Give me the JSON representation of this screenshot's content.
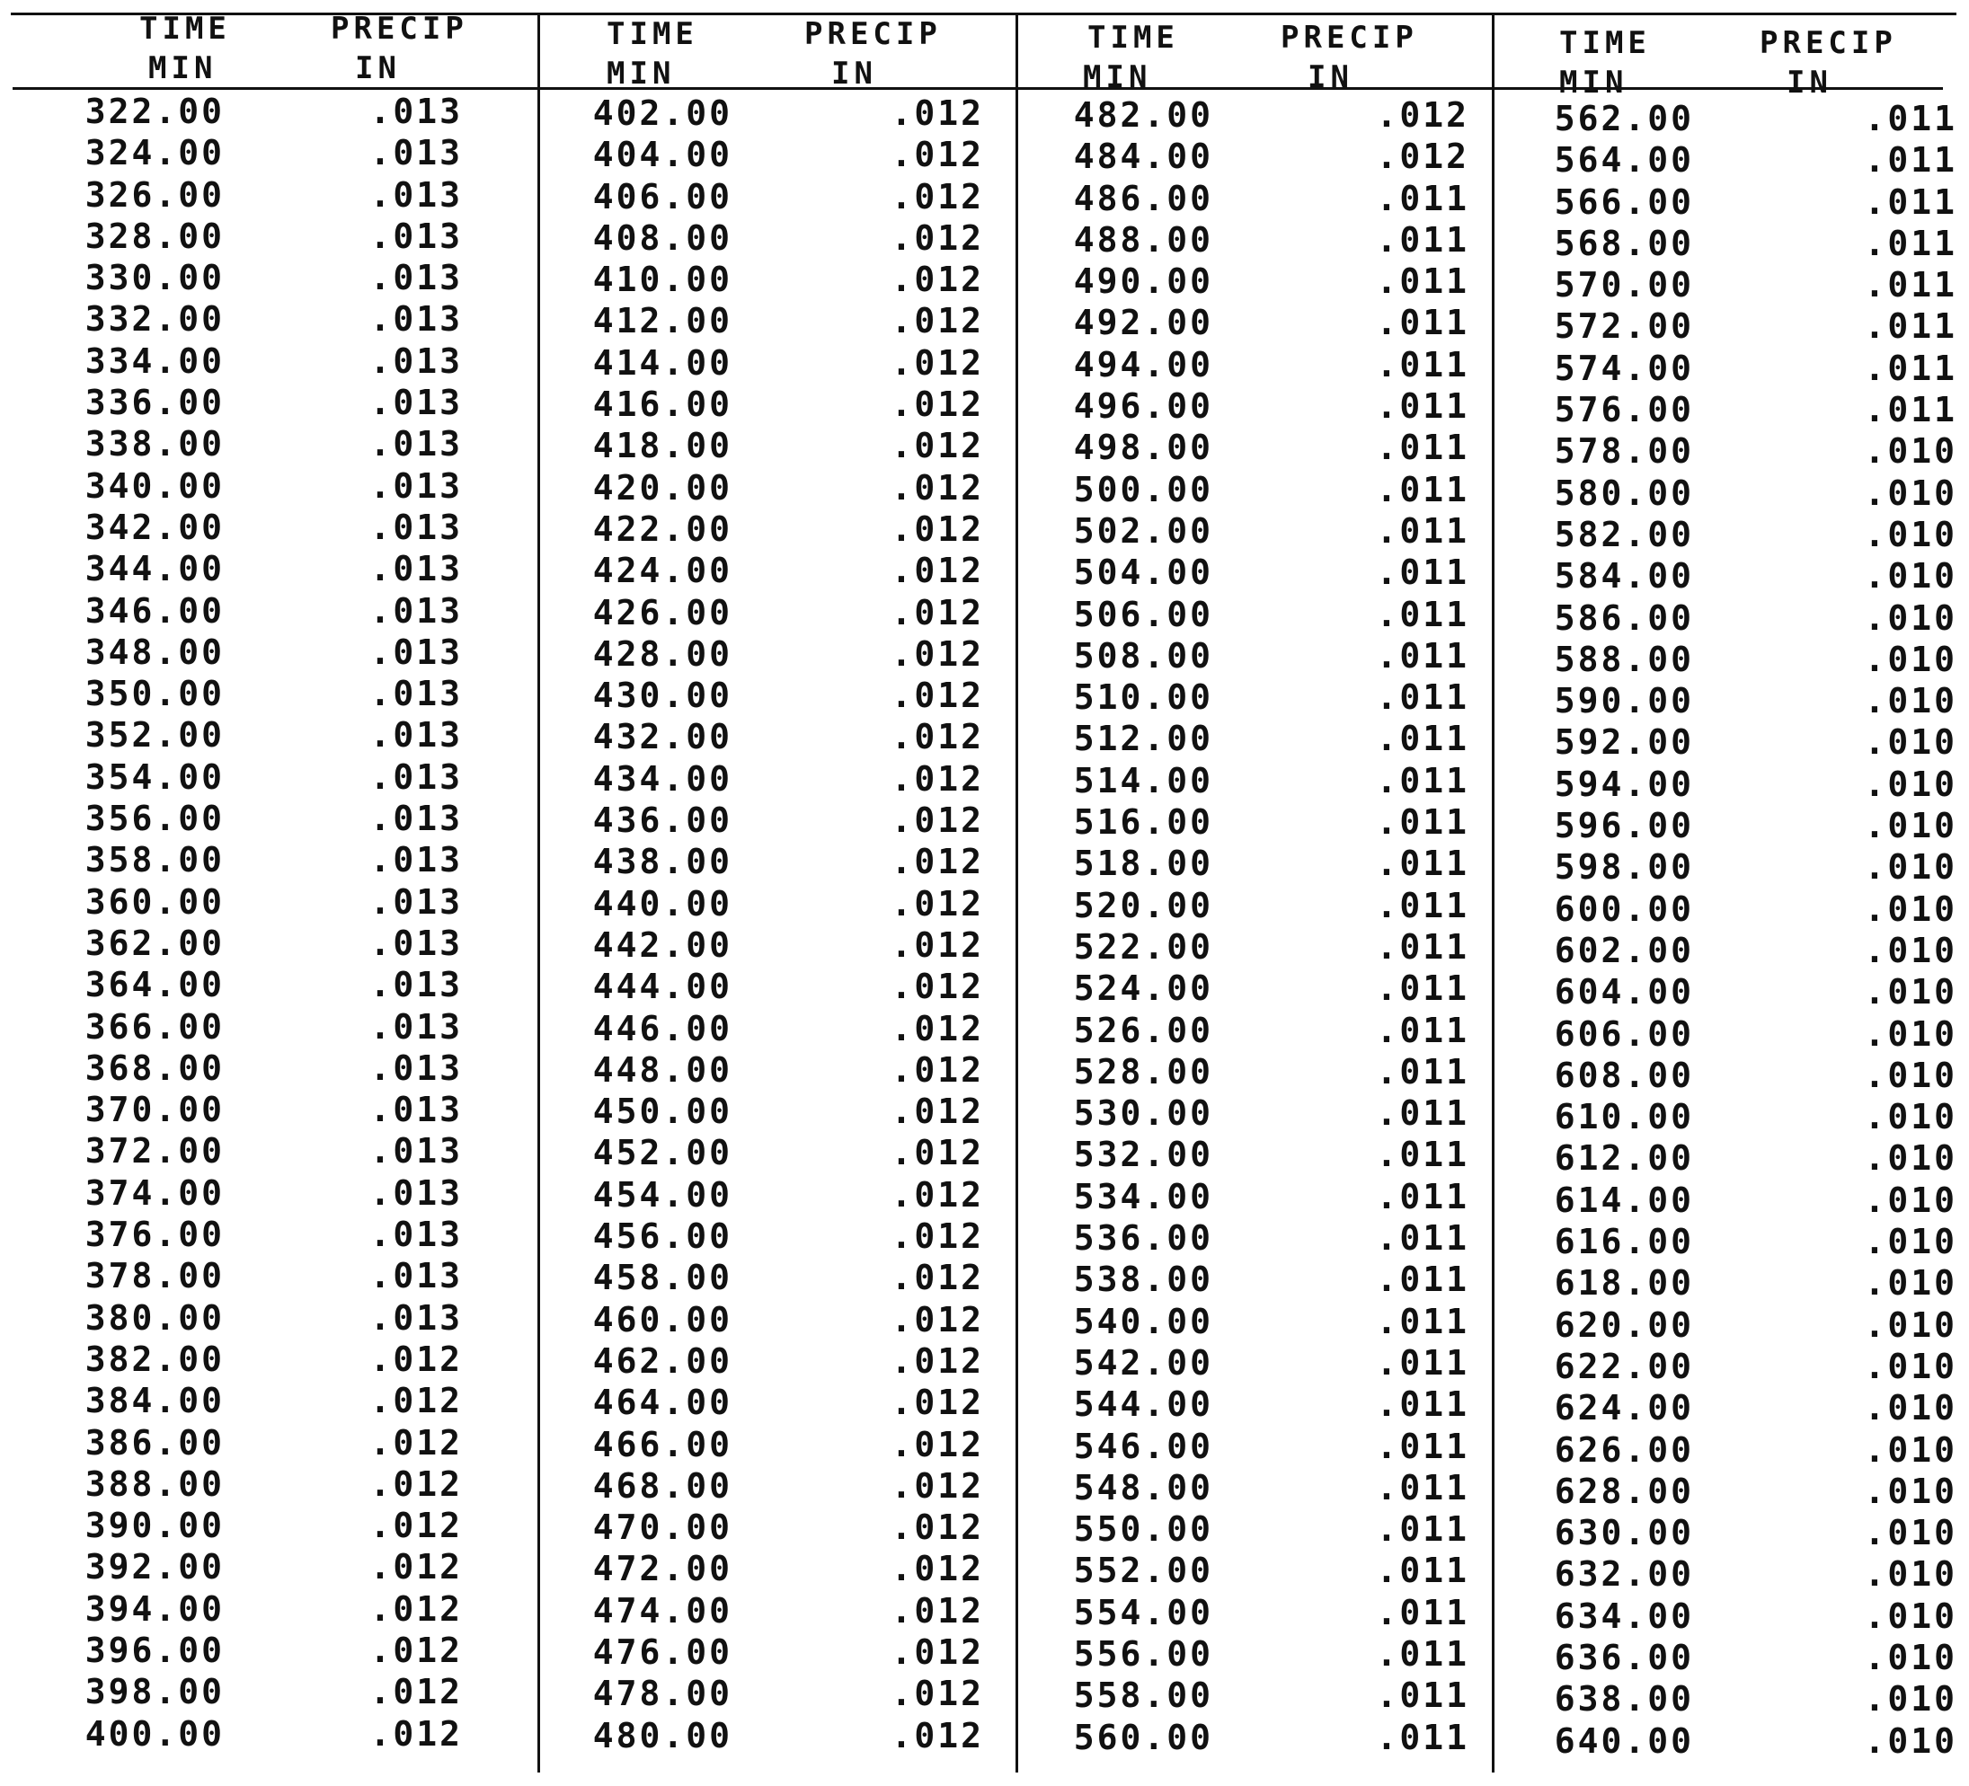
{
  "table": {
    "header": {
      "time_line1": "TIME",
      "time_line2": "MIN",
      "precip_line1": "PRECIP",
      "precip_line2": "IN"
    },
    "columns": [
      {
        "rows": [
          {
            "time": "322.00",
            "precip": ".013"
          },
          {
            "time": "324.00",
            "precip": ".013"
          },
          {
            "time": "326.00",
            "precip": ".013"
          },
          {
            "time": "328.00",
            "precip": ".013"
          },
          {
            "time": "330.00",
            "precip": ".013"
          },
          {
            "time": "332.00",
            "precip": ".013"
          },
          {
            "time": "334.00",
            "precip": ".013"
          },
          {
            "time": "336.00",
            "precip": ".013"
          },
          {
            "time": "338.00",
            "precip": ".013"
          },
          {
            "time": "340.00",
            "precip": ".013"
          },
          {
            "time": "342.00",
            "precip": ".013"
          },
          {
            "time": "344.00",
            "precip": ".013"
          },
          {
            "time": "346.00",
            "precip": ".013"
          },
          {
            "time": "348.00",
            "precip": ".013"
          },
          {
            "time": "350.00",
            "precip": ".013"
          },
          {
            "time": "352.00",
            "precip": ".013"
          },
          {
            "time": "354.00",
            "precip": ".013"
          },
          {
            "time": "356.00",
            "precip": ".013"
          },
          {
            "time": "358.00",
            "precip": ".013"
          },
          {
            "time": "360.00",
            "precip": ".013"
          },
          {
            "time": "362.00",
            "precip": ".013"
          },
          {
            "time": "364.00",
            "precip": ".013"
          },
          {
            "time": "366.00",
            "precip": ".013"
          },
          {
            "time": "368.00",
            "precip": ".013"
          },
          {
            "time": "370.00",
            "precip": ".013"
          },
          {
            "time": "372.00",
            "precip": ".013"
          },
          {
            "time": "374.00",
            "precip": ".013"
          },
          {
            "time": "376.00",
            "precip": ".013"
          },
          {
            "time": "378.00",
            "precip": ".013"
          },
          {
            "time": "380.00",
            "precip": ".013"
          },
          {
            "time": "382.00",
            "precip": ".012"
          },
          {
            "time": "384.00",
            "precip": ".012"
          },
          {
            "time": "386.00",
            "precip": ".012"
          },
          {
            "time": "388.00",
            "precip": ".012"
          },
          {
            "time": "390.00",
            "precip": ".012"
          },
          {
            "time": "392.00",
            "precip": ".012"
          },
          {
            "time": "394.00",
            "precip": ".012"
          },
          {
            "time": "396.00",
            "precip": ".012"
          },
          {
            "time": "398.00",
            "precip": ".012"
          },
          {
            "time": "400.00",
            "precip": ".012"
          }
        ]
      },
      {
        "rows": [
          {
            "time": "402.00",
            "precip": ".012"
          },
          {
            "time": "404.00",
            "precip": ".012"
          },
          {
            "time": "406.00",
            "precip": ".012"
          },
          {
            "time": "408.00",
            "precip": ".012"
          },
          {
            "time": "410.00",
            "precip": ".012"
          },
          {
            "time": "412.00",
            "precip": ".012"
          },
          {
            "time": "414.00",
            "precip": ".012"
          },
          {
            "time": "416.00",
            "precip": ".012"
          },
          {
            "time": "418.00",
            "precip": ".012"
          },
          {
            "time": "420.00",
            "precip": ".012"
          },
          {
            "time": "422.00",
            "precip": ".012"
          },
          {
            "time": "424.00",
            "precip": ".012"
          },
          {
            "time": "426.00",
            "precip": ".012"
          },
          {
            "time": "428.00",
            "precip": ".012"
          },
          {
            "time": "430.00",
            "precip": ".012"
          },
          {
            "time": "432.00",
            "precip": ".012"
          },
          {
            "time": "434.00",
            "precip": ".012"
          },
          {
            "time": "436.00",
            "precip": ".012"
          },
          {
            "time": "438.00",
            "precip": ".012"
          },
          {
            "time": "440.00",
            "precip": ".012"
          },
          {
            "time": "442.00",
            "precip": ".012"
          },
          {
            "time": "444.00",
            "precip": ".012"
          },
          {
            "time": "446.00",
            "precip": ".012"
          },
          {
            "time": "448.00",
            "precip": ".012"
          },
          {
            "time": "450.00",
            "precip": ".012"
          },
          {
            "time": "452.00",
            "precip": ".012"
          },
          {
            "time": "454.00",
            "precip": ".012"
          },
          {
            "time": "456.00",
            "precip": ".012"
          },
          {
            "time": "458.00",
            "precip": ".012"
          },
          {
            "time": "460.00",
            "precip": ".012"
          },
          {
            "time": "462.00",
            "precip": ".012"
          },
          {
            "time": "464.00",
            "precip": ".012"
          },
          {
            "time": "466.00",
            "precip": ".012"
          },
          {
            "time": "468.00",
            "precip": ".012"
          },
          {
            "time": "470.00",
            "precip": ".012"
          },
          {
            "time": "472.00",
            "precip": ".012"
          },
          {
            "time": "474.00",
            "precip": ".012"
          },
          {
            "time": "476.00",
            "precip": ".012"
          },
          {
            "time": "478.00",
            "precip": ".012"
          },
          {
            "time": "480.00",
            "precip": ".012"
          }
        ]
      },
      {
        "rows": [
          {
            "time": "482.00",
            "precip": ".012"
          },
          {
            "time": "484.00",
            "precip": ".012"
          },
          {
            "time": "486.00",
            "precip": ".011"
          },
          {
            "time": "488.00",
            "precip": ".011"
          },
          {
            "time": "490.00",
            "precip": ".011"
          },
          {
            "time": "492.00",
            "precip": ".011"
          },
          {
            "time": "494.00",
            "precip": ".011"
          },
          {
            "time": "496.00",
            "precip": ".011"
          },
          {
            "time": "498.00",
            "precip": ".011"
          },
          {
            "time": "500.00",
            "precip": ".011"
          },
          {
            "time": "502.00",
            "precip": ".011"
          },
          {
            "time": "504.00",
            "precip": ".011"
          },
          {
            "time": "506.00",
            "precip": ".011"
          },
          {
            "time": "508.00",
            "precip": ".011"
          },
          {
            "time": "510.00",
            "precip": ".011"
          },
          {
            "time": "512.00",
            "precip": ".011"
          },
          {
            "time": "514.00",
            "precip": ".011"
          },
          {
            "time": "516.00",
            "precip": ".011"
          },
          {
            "time": "518.00",
            "precip": ".011"
          },
          {
            "time": "520.00",
            "precip": ".011"
          },
          {
            "time": "522.00",
            "precip": ".011"
          },
          {
            "time": "524.00",
            "precip": ".011"
          },
          {
            "time": "526.00",
            "precip": ".011"
          },
          {
            "time": "528.00",
            "precip": ".011"
          },
          {
            "time": "530.00",
            "precip": ".011"
          },
          {
            "time": "532.00",
            "precip": ".011"
          },
          {
            "time": "534.00",
            "precip": ".011"
          },
          {
            "time": "536.00",
            "precip": ".011"
          },
          {
            "time": "538.00",
            "precip": ".011"
          },
          {
            "time": "540.00",
            "precip": ".011"
          },
          {
            "time": "542.00",
            "precip": ".011"
          },
          {
            "time": "544.00",
            "precip": ".011"
          },
          {
            "time": "546.00",
            "precip": ".011"
          },
          {
            "time": "548.00",
            "precip": ".011"
          },
          {
            "time": "550.00",
            "precip": ".011"
          },
          {
            "time": "552.00",
            "precip": ".011"
          },
          {
            "time": "554.00",
            "precip": ".011"
          },
          {
            "time": "556.00",
            "precip": ".011"
          },
          {
            "time": "558.00",
            "precip": ".011"
          },
          {
            "time": "560.00",
            "precip": ".011"
          }
        ]
      },
      {
        "rows": [
          {
            "time": "562.00",
            "precip": ".011"
          },
          {
            "time": "564.00",
            "precip": ".011"
          },
          {
            "time": "566.00",
            "precip": ".011"
          },
          {
            "time": "568.00",
            "precip": ".011"
          },
          {
            "time": "570.00",
            "precip": ".011"
          },
          {
            "time": "572.00",
            "precip": ".011"
          },
          {
            "time": "574.00",
            "precip": ".011"
          },
          {
            "time": "576.00",
            "precip": ".011"
          },
          {
            "time": "578.00",
            "precip": ".010"
          },
          {
            "time": "580.00",
            "precip": ".010"
          },
          {
            "time": "582.00",
            "precip": ".010"
          },
          {
            "time": "584.00",
            "precip": ".010"
          },
          {
            "time": "586.00",
            "precip": ".010"
          },
          {
            "time": "588.00",
            "precip": ".010"
          },
          {
            "time": "590.00",
            "precip": ".010"
          },
          {
            "time": "592.00",
            "precip": ".010"
          },
          {
            "time": "594.00",
            "precip": ".010"
          },
          {
            "time": "596.00",
            "precip": ".010"
          },
          {
            "time": "598.00",
            "precip": ".010"
          },
          {
            "time": "600.00",
            "precip": ".010"
          },
          {
            "time": "602.00",
            "precip": ".010"
          },
          {
            "time": "604.00",
            "precip": ".010"
          },
          {
            "time": "606.00",
            "precip": ".010"
          },
          {
            "time": "608.00",
            "precip": ".010"
          },
          {
            "time": "610.00",
            "precip": ".010"
          },
          {
            "time": "612.00",
            "precip": ".010"
          },
          {
            "time": "614.00",
            "precip": ".010"
          },
          {
            "time": "616.00",
            "precip": ".010"
          },
          {
            "time": "618.00",
            "precip": ".010"
          },
          {
            "time": "620.00",
            "precip": ".010"
          },
          {
            "time": "622.00",
            "precip": ".010"
          },
          {
            "time": "624.00",
            "precip": ".010"
          },
          {
            "time": "626.00",
            "precip": ".010"
          },
          {
            "time": "628.00",
            "precip": ".010"
          },
          {
            "time": "630.00",
            "precip": ".010"
          },
          {
            "time": "632.00",
            "precip": ".010"
          },
          {
            "time": "634.00",
            "precip": ".010"
          },
          {
            "time": "636.00",
            "precip": ".010"
          },
          {
            "time": "638.00",
            "precip": ".010"
          },
          {
            "time": "640.00",
            "precip": ".010"
          }
        ]
      }
    ]
  }
}
